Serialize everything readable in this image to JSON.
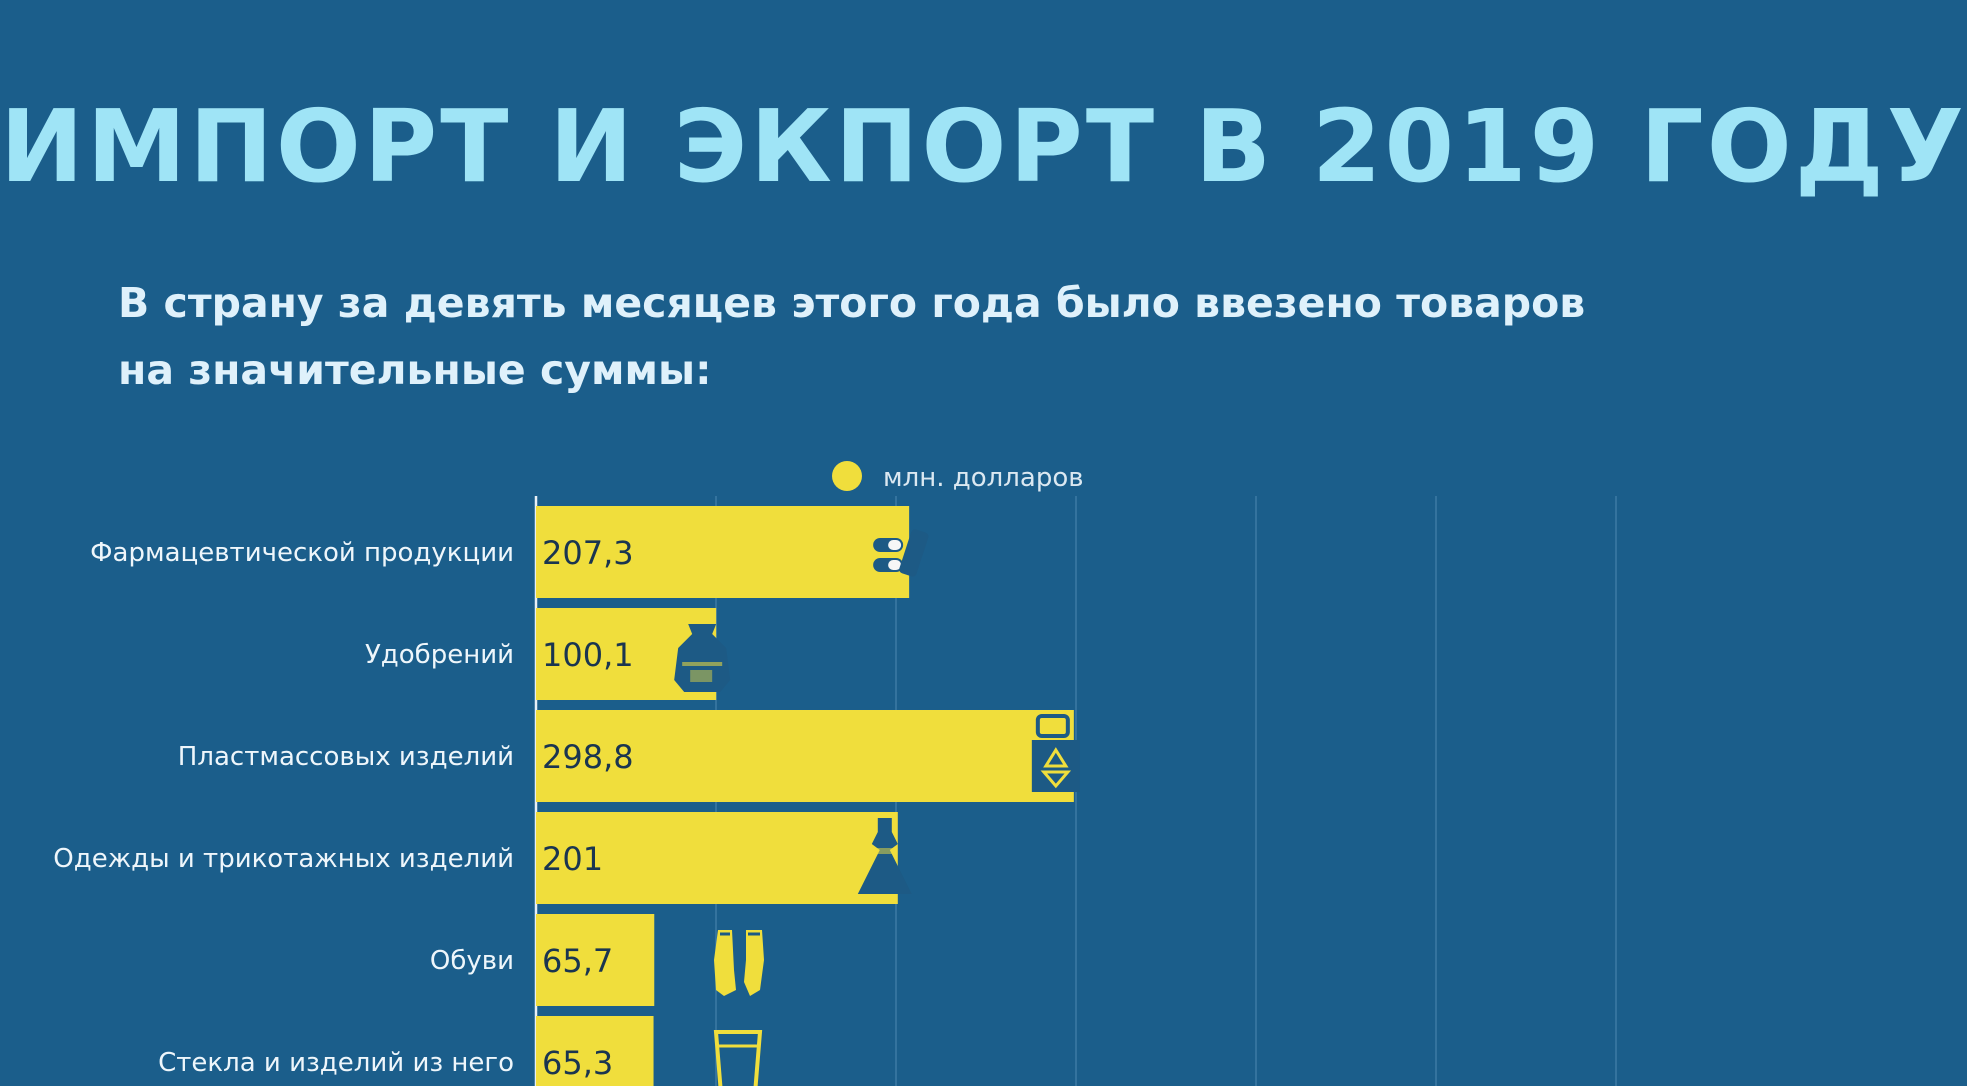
{
  "header": {
    "title": "ИМПОРТ И ЭКПОРТ В 2019 ГОДУ",
    "subtitle_line1": "В страну за девять месяцев этого года было ввезено товаров",
    "subtitle_line2": "на значительные суммы:"
  },
  "colors": {
    "background": "#1b5e8b",
    "bar": "#f0de3c",
    "title": "#9fe4f6",
    "icon": "#1d5a85"
  },
  "chart_data": {
    "type": "bar",
    "orientation": "horizontal",
    "legend": {
      "label": "млн. долларов",
      "position": "top"
    },
    "grid": true,
    "xlim": [
      0,
      600
    ],
    "categories": [
      "Фармацевтической продукции",
      "Удобрений",
      "Пластмассовых изделий",
      "Одежды и трикотажных изделий",
      "Обуви",
      "Стекла и изделий из него"
    ],
    "values": [
      207.3,
      100.1,
      298.8,
      201,
      65.7,
      65.3
    ],
    "value_labels": [
      "207,3",
      "100,1",
      "298,8",
      "201",
      "65,7",
      "65,3"
    ],
    "icons": [
      "pills-icon",
      "fertilizer-sack-icon",
      "plastic-recycle-icon",
      "dress-icon",
      "shoes-icon",
      "glass-icon"
    ]
  }
}
